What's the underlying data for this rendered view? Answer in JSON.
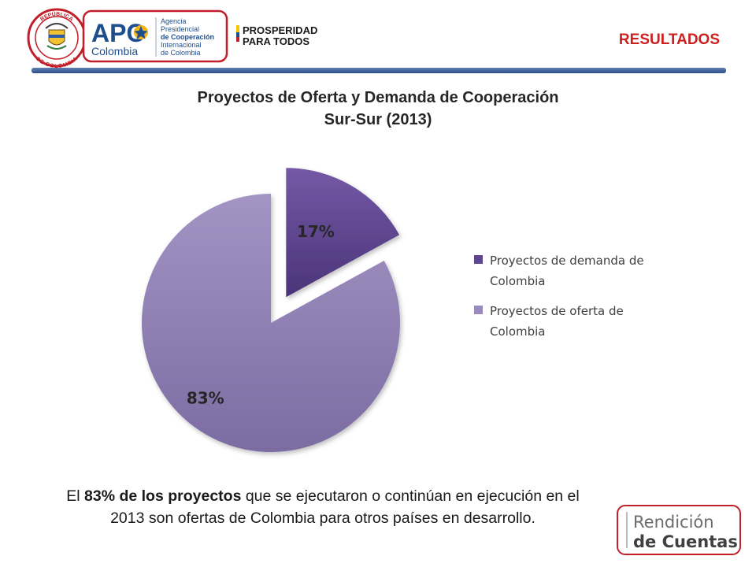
{
  "header": {
    "seal": {
      "arc_top": "REPÚBLICA",
      "arc_bottom": "DE COLOMBIA"
    },
    "apc": {
      "acronym": "APC",
      "country": "Colombia",
      "agency_lines": [
        "Agencia",
        "Presidencial",
        "de Cooperación",
        "Internacional",
        "de Colombia"
      ]
    },
    "prosperidad": {
      "line1": "PROSPERIDAD",
      "line2": "PARA TODOS"
    },
    "section_label": "RESULTADOS"
  },
  "chart_data": {
    "type": "pie",
    "title": [
      "Proyectos de Oferta y Demanda de Cooperación",
      "Sur-Sur (2013)"
    ],
    "slices": [
      {
        "name": "Proyectos de demanda de Colombia",
        "value": 17,
        "label": "17%",
        "color": "#5f4590",
        "exploded": true
      },
      {
        "name": "Proyectos de oferta de Colombia",
        "value": 83,
        "label": "83%",
        "color": "#9b8bbc",
        "exploded": false
      }
    ],
    "legend_position": "right"
  },
  "summary": {
    "p1": "El ",
    "b1": "83% de los proyectos",
    "p2": " que se ejecutaron o continúan en ejecución en el 2013 son ofertas de Colombia para otros países en desarrollo."
  },
  "footer": {
    "logo_line1": "Rendición",
    "logo_line2": "de Cuentas"
  },
  "colors": {
    "accent_red": "#cc1f1f",
    "rule_blue": "#2d4f8c",
    "apc_blue": "#1f4e8f",
    "apc_gold": "#f2b31b"
  }
}
